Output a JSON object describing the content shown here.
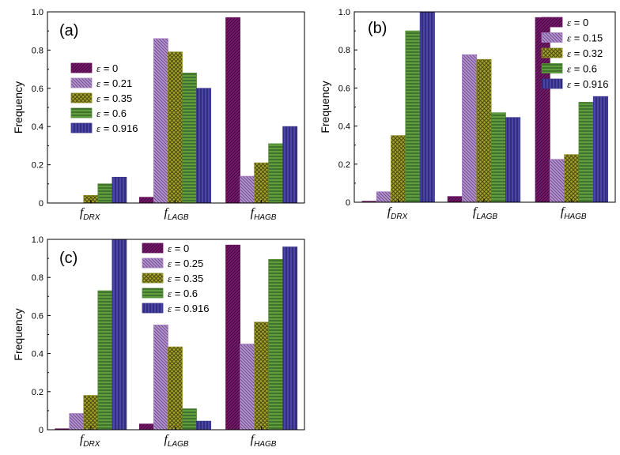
{
  "chart_data": [
    {
      "type": "bar",
      "panel_label": "(a)",
      "ylabel": "Frequency",
      "ylim": [
        0,
        1.0
      ],
      "yticks": [
        "0",
        "0.2",
        "0.4",
        "0.6",
        "0.8",
        "1.0"
      ],
      "categories": [
        {
          "main": "f",
          "sub": "DRX"
        },
        {
          "main": "f",
          "sub": "LAGB"
        },
        {
          "main": "f",
          "sub": "HAGB"
        }
      ],
      "legend_position": "left",
      "series": [
        {
          "name": "ε = 0",
          "values": [
            0.0,
            0.03,
            0.97
          ]
        },
        {
          "name": "ε = 0.21",
          "values": [
            0.0,
            0.86,
            0.14
          ]
        },
        {
          "name": "ε = 0.35",
          "values": [
            0.04,
            0.79,
            0.21
          ]
        },
        {
          "name": "ε = 0.6",
          "values": [
            0.1,
            0.68,
            0.31
          ]
        },
        {
          "name": "ε = 0.916",
          "values": [
            0.135,
            0.6,
            0.4
          ]
        }
      ]
    },
    {
      "type": "bar",
      "panel_label": "(b)",
      "ylabel": "Frequency",
      "ylim": [
        0,
        1.0
      ],
      "yticks": [
        "0",
        "0.2",
        "0.4",
        "0.6",
        "0.8",
        "1.0"
      ],
      "categories": [
        {
          "main": "f",
          "sub": "DRX"
        },
        {
          "main": "f",
          "sub": "LAGB"
        },
        {
          "main": "f",
          "sub": "HAGB"
        }
      ],
      "legend_position": "top-right",
      "series": [
        {
          "name": "ε = 0",
          "values": [
            0.005,
            0.03,
            0.97
          ]
        },
        {
          "name": "ε = 0.15",
          "values": [
            0.055,
            0.775,
            0.225
          ]
        },
        {
          "name": "ε = 0.32",
          "values": [
            0.35,
            0.75,
            0.25
          ]
        },
        {
          "name": "ε = 0.6",
          "values": [
            0.9,
            0.47,
            0.525
          ]
        },
        {
          "name": "ε = 0.916",
          "values": [
            1.0,
            0.445,
            0.555
          ]
        }
      ]
    },
    {
      "type": "bar",
      "panel_label": "(c)",
      "ylabel": "Frequency",
      "ylim": [
        0,
        1.0
      ],
      "yticks": [
        "0",
        "0.2",
        "0.4",
        "0.6",
        "0.8",
        "1.0"
      ],
      "categories": [
        {
          "main": "f",
          "sub": "DRX"
        },
        {
          "main": "f",
          "sub": "LAGB"
        },
        {
          "main": "f",
          "sub": "HAGB"
        }
      ],
      "legend_position": "top-center",
      "series": [
        {
          "name": "ε = 0",
          "values": [
            0.005,
            0.03,
            0.97
          ]
        },
        {
          "name": "ε = 0.25",
          "values": [
            0.085,
            0.55,
            0.45
          ]
        },
        {
          "name": "ε = 0.35",
          "values": [
            0.18,
            0.435,
            0.565
          ]
        },
        {
          "name": "ε = 0.6",
          "values": [
            0.73,
            0.11,
            0.895
          ]
        },
        {
          "name": "ε = 0.916",
          "values": [
            1.0,
            0.045,
            0.96
          ]
        }
      ]
    }
  ],
  "series_colors": [
    "#6b1060",
    "#a77fc2",
    "#8b8a20",
    "#4f8a35",
    "#3a3590"
  ],
  "series_patterns": [
    "diag-right",
    "diag-left",
    "cross",
    "horizontal",
    "vertical"
  ]
}
